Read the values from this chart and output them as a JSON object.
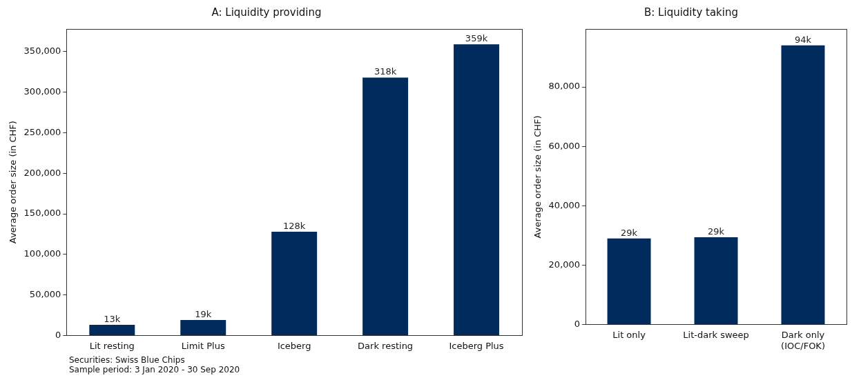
{
  "chart_data": [
    {
      "type": "bar",
      "title": "A: Liquidity providing",
      "ylabel": "Average order size (in CHF)",
      "categories": [
        "Lit resting",
        "Limit Plus",
        "Iceberg",
        "Dark resting",
        "Iceberg Plus"
      ],
      "series": [
        {
          "color": "#002b5c",
          "values": [
            13000,
            19000,
            128000,
            318000,
            359000
          ],
          "value_labels": [
            "13k",
            "19k",
            "128k",
            "318k",
            "359k"
          ]
        }
      ],
      "ylim": [
        0,
        378000
      ],
      "yticks": [
        {
          "value": 0,
          "label": "0"
        },
        {
          "value": 50000,
          "label": "50,000"
        },
        {
          "value": 100000,
          "label": "100,000"
        },
        {
          "value": 150000,
          "label": "150,000"
        },
        {
          "value": 200000,
          "label": "200,000"
        },
        {
          "value": 250000,
          "label": "250,000"
        },
        {
          "value": 300000,
          "label": "300,000"
        },
        {
          "value": 350000,
          "label": "350,000"
        }
      ],
      "grid": false,
      "legend": false,
      "annotations": [
        "Securities: Swiss Blue Chips",
        "Sample period: 3 Jan 2020 - 30 Sep 2020"
      ]
    },
    {
      "type": "bar",
      "title": "B: Liquidity taking",
      "ylabel": "Average order size (in CHF)",
      "categories": [
        "Lit only",
        "Lit-dark sweep",
        "Dark only\n(IOC/FOK)"
      ],
      "series": [
        {
          "color": "#002b5c",
          "values": [
            29000,
            29400,
            94000
          ],
          "value_labels": [
            "29k",
            "29k",
            "94k"
          ]
        }
      ],
      "ylim": [
        0,
        99500
      ],
      "yticks": [
        {
          "value": 0,
          "label": "0"
        },
        {
          "value": 20000,
          "label": "20,000"
        },
        {
          "value": 40000,
          "label": "40,000"
        },
        {
          "value": 60000,
          "label": "60,000"
        },
        {
          "value": 80000,
          "label": "80,000"
        }
      ],
      "grid": false,
      "legend": false
    }
  ]
}
